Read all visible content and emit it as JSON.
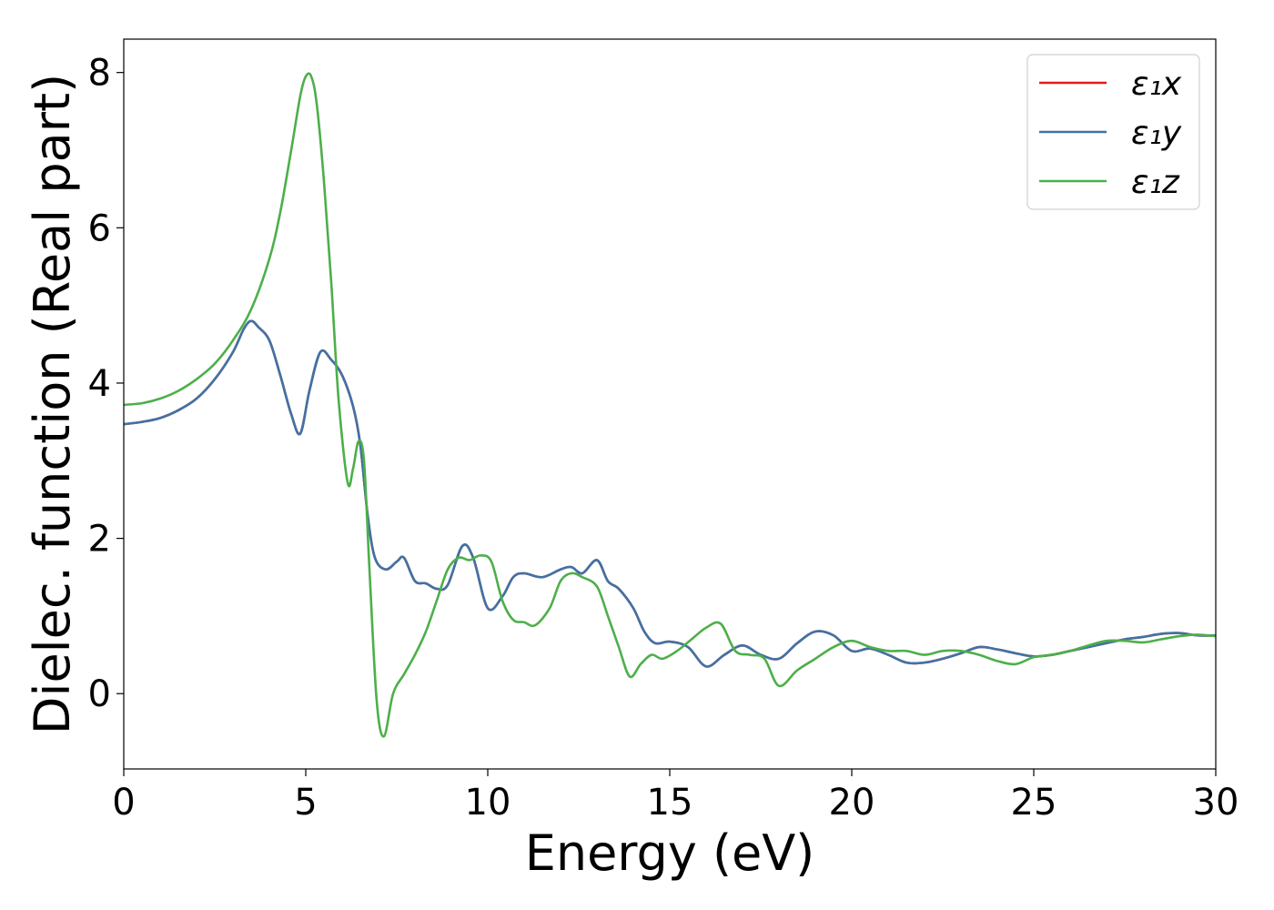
{
  "chart_data": {
    "type": "line",
    "xlabel": "Energy (eV)",
    "ylabel": "Dielec. function (Real part)",
    "xlim": [
      0,
      30
    ],
    "ylim": [
      -0.97,
      8.43
    ],
    "xticks": [
      0,
      5,
      10,
      15,
      20,
      25,
      30
    ],
    "xtick_labels": [
      "0",
      "5",
      "10",
      "15",
      "20",
      "25",
      "30"
    ],
    "yticks": [
      0,
      2,
      4,
      6,
      8
    ],
    "ytick_labels": [
      "0",
      "2",
      "4",
      "6",
      "8"
    ],
    "grid": false,
    "legend_position": "top-right",
    "series": [
      {
        "name": "ε₁x",
        "color": "#e41a1c",
        "x": [
          0,
          0.5,
          1,
          1.5,
          2,
          2.5,
          3,
          3.3,
          3.5,
          3.7,
          4,
          4.3,
          4.6,
          4.85,
          5.1,
          5.4,
          5.7,
          6.0,
          6.3,
          6.5,
          6.7,
          6.9,
          7.2,
          7.5,
          7.7,
          8.0,
          8.3,
          8.6,
          8.9,
          9.3,
          9.6,
          10.0,
          10.4,
          10.7,
          11.0,
          11.5,
          12.0,
          12.3,
          12.6,
          13.0,
          13.3,
          13.6,
          14.0,
          14.3,
          14.6,
          15.0,
          15.5,
          16.0,
          16.5,
          17.0,
          17.5,
          18.0,
          18.5,
          19.0,
          19.5,
          20.0,
          20.5,
          21.0,
          21.5,
          22.0,
          22.5,
          23.0,
          23.5,
          24.0,
          24.5,
          25.0,
          25.5,
          26.0,
          26.5,
          27.0,
          27.5,
          28.0,
          28.5,
          29.0,
          29.5,
          30.0
        ],
        "y": [
          3.47,
          3.5,
          3.55,
          3.65,
          3.8,
          4.05,
          4.4,
          4.7,
          4.8,
          4.72,
          4.55,
          4.1,
          3.6,
          3.35,
          3.9,
          4.4,
          4.3,
          4.1,
          3.7,
          3.2,
          2.3,
          1.75,
          1.6,
          1.7,
          1.75,
          1.45,
          1.42,
          1.35,
          1.4,
          1.9,
          1.75,
          1.1,
          1.25,
          1.5,
          1.55,
          1.5,
          1.6,
          1.63,
          1.55,
          1.72,
          1.45,
          1.35,
          1.1,
          0.8,
          0.65,
          0.67,
          0.6,
          0.35,
          0.5,
          0.62,
          0.5,
          0.45,
          0.65,
          0.8,
          0.75,
          0.55,
          0.58,
          0.5,
          0.4,
          0.4,
          0.45,
          0.52,
          0.6,
          0.57,
          0.52,
          0.48,
          0.5,
          0.55,
          0.6,
          0.65,
          0.7,
          0.73,
          0.77,
          0.78,
          0.75,
          0.75
        ]
      },
      {
        "name": "ε₁y",
        "color": "#3f73a5",
        "x": [
          0,
          0.5,
          1,
          1.5,
          2,
          2.5,
          3,
          3.3,
          3.5,
          3.7,
          4,
          4.3,
          4.6,
          4.85,
          5.1,
          5.4,
          5.7,
          6.0,
          6.3,
          6.5,
          6.7,
          6.9,
          7.2,
          7.5,
          7.7,
          8.0,
          8.3,
          8.6,
          8.9,
          9.3,
          9.6,
          10.0,
          10.4,
          10.7,
          11.0,
          11.5,
          12.0,
          12.3,
          12.6,
          13.0,
          13.3,
          13.6,
          14.0,
          14.3,
          14.6,
          15.0,
          15.5,
          16.0,
          16.5,
          17.0,
          17.5,
          18.0,
          18.5,
          19.0,
          19.5,
          20.0,
          20.5,
          21.0,
          21.5,
          22.0,
          22.5,
          23.0,
          23.5,
          24.0,
          24.5,
          25.0,
          25.5,
          26.0,
          26.5,
          27.0,
          27.5,
          28.0,
          28.5,
          29.0,
          29.5,
          30.0
        ],
        "y": [
          3.47,
          3.5,
          3.55,
          3.65,
          3.8,
          4.05,
          4.4,
          4.7,
          4.8,
          4.72,
          4.55,
          4.1,
          3.6,
          3.35,
          3.9,
          4.4,
          4.3,
          4.1,
          3.7,
          3.2,
          2.3,
          1.75,
          1.6,
          1.7,
          1.75,
          1.45,
          1.42,
          1.35,
          1.4,
          1.9,
          1.75,
          1.1,
          1.25,
          1.5,
          1.55,
          1.5,
          1.6,
          1.63,
          1.55,
          1.72,
          1.45,
          1.35,
          1.1,
          0.8,
          0.65,
          0.67,
          0.6,
          0.35,
          0.5,
          0.62,
          0.5,
          0.45,
          0.65,
          0.8,
          0.75,
          0.55,
          0.58,
          0.5,
          0.4,
          0.4,
          0.45,
          0.52,
          0.6,
          0.57,
          0.52,
          0.48,
          0.5,
          0.55,
          0.6,
          0.65,
          0.7,
          0.73,
          0.77,
          0.78,
          0.75,
          0.75
        ]
      },
      {
        "name": "ε₁z",
        "color": "#4daf4a",
        "x": [
          0,
          0.5,
          1,
          1.5,
          2,
          2.5,
          3,
          3.5,
          4,
          4.3,
          4.6,
          4.85,
          5.0,
          5.15,
          5.3,
          5.5,
          5.7,
          5.9,
          6.15,
          6.3,
          6.45,
          6.6,
          6.75,
          6.95,
          7.15,
          7.4,
          7.7,
          8.0,
          8.3,
          8.6,
          8.9,
          9.2,
          9.5,
          9.8,
          10.1,
          10.4,
          10.7,
          11.0,
          11.3,
          11.7,
          12.0,
          12.3,
          12.6,
          13.0,
          13.3,
          13.6,
          13.9,
          14.2,
          14.5,
          14.8,
          15.2,
          15.6,
          16.0,
          16.4,
          16.8,
          17.2,
          17.6,
          18.0,
          18.5,
          19.0,
          19.5,
          20.0,
          20.5,
          21.0,
          21.5,
          22.0,
          22.5,
          23.0,
          23.5,
          24.0,
          24.5,
          25.0,
          25.5,
          26.0,
          26.5,
          27.0,
          27.5,
          28.0,
          28.5,
          29.0,
          29.5,
          30.0
        ],
        "y": [
          3.72,
          3.74,
          3.8,
          3.9,
          4.05,
          4.25,
          4.55,
          4.95,
          5.6,
          6.2,
          7.0,
          7.7,
          7.95,
          7.95,
          7.6,
          6.6,
          5.3,
          3.8,
          2.72,
          2.9,
          3.25,
          3.0,
          1.6,
          -0.1,
          -0.55,
          0.0,
          0.25,
          0.5,
          0.8,
          1.2,
          1.6,
          1.75,
          1.72,
          1.78,
          1.7,
          1.2,
          0.95,
          0.92,
          0.88,
          1.1,
          1.45,
          1.55,
          1.5,
          1.38,
          1.0,
          0.6,
          0.22,
          0.38,
          0.5,
          0.45,
          0.55,
          0.7,
          0.85,
          0.9,
          0.55,
          0.5,
          0.45,
          0.1,
          0.3,
          0.45,
          0.6,
          0.68,
          0.6,
          0.55,
          0.55,
          0.5,
          0.55,
          0.55,
          0.5,
          0.42,
          0.38,
          0.47,
          0.5,
          0.55,
          0.62,
          0.68,
          0.68,
          0.66,
          0.7,
          0.74,
          0.76,
          0.74
        ]
      }
    ]
  }
}
